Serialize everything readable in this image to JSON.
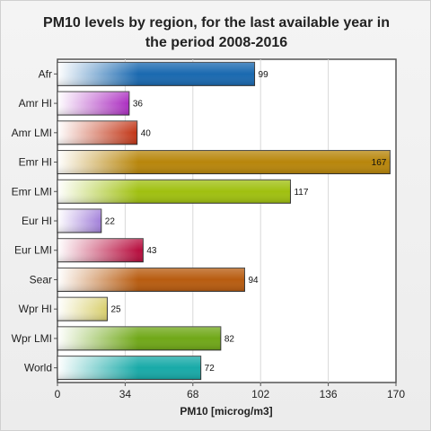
{
  "chart_data": {
    "type": "bar",
    "orientation": "horizontal",
    "title_line1": "PM10 levels by region, for the last available year in",
    "title_line2": "the period 2008-2016",
    "xlabel": "PM10 [microg/m3]",
    "ylabel": "",
    "categories": [
      "Afr",
      "Amr HI",
      "Amr LMI",
      "Emr HI",
      "Emr LMI",
      "Eur HI",
      "Eur LMI",
      "Sear",
      "Wpr HI",
      "Wpr LMI",
      "World"
    ],
    "values": [
      99,
      36,
      40,
      167,
      117,
      22,
      43,
      94,
      25,
      82,
      72
    ],
    "value_labels": [
      "99",
      "36",
      "40",
      "167",
      "117",
      "22",
      "43",
      "94",
      "25",
      "82",
      "72"
    ],
    "colors": [
      "#1a69b0",
      "#a012b8",
      "#c03010",
      "#b8860b",
      "#a0c010",
      "#5010b8",
      "#b81040",
      "#b85c10",
      "#c0b010",
      "#70a818",
      "#18aaa8"
    ],
    "xlim": [
      0,
      170
    ],
    "xticks": [
      "0",
      "34",
      "68",
      "102",
      "136",
      "170"
    ],
    "xtick_values": [
      0,
      34,
      68,
      102,
      136,
      170
    ],
    "grid": "vertical",
    "legend": "none"
  }
}
